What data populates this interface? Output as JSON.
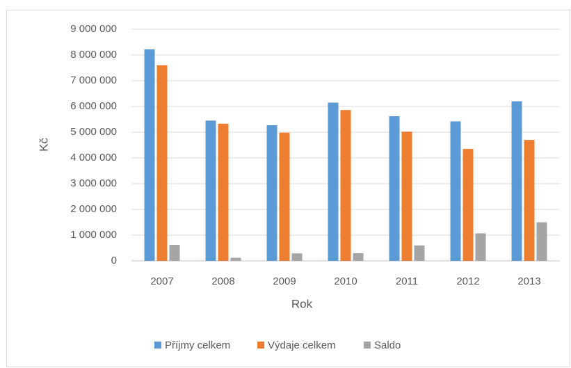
{
  "chart_data": {
    "type": "bar",
    "x_label": "Rok",
    "y_label": "Kč",
    "categories": [
      "2007",
      "2008",
      "2009",
      "2010",
      "2011",
      "2012",
      "2013"
    ],
    "series": [
      {
        "name": "Příjmy celkem",
        "color": "#5b9bd5",
        "values": [
          8220000,
          5450000,
          5270000,
          6150000,
          5620000,
          5420000,
          6200000
        ]
      },
      {
        "name": "Výdaje celkem",
        "color": "#ed7d31",
        "values": [
          7600000,
          5330000,
          4980000,
          5860000,
          5020000,
          4350000,
          4700000
        ]
      },
      {
        "name": "Saldo",
        "color": "#a5a5a5",
        "values": [
          620000,
          120000,
          290000,
          300000,
          600000,
          1070000,
          1500000
        ]
      }
    ],
    "ylim": [
      0,
      9000000
    ],
    "yticks": [
      0,
      {
        "value": 1000000,
        "label": "1 000 000"
      },
      {
        "value": 2000000,
        "label": "2 000 000"
      },
      {
        "value": 3000000,
        "label": "3 000 000"
      },
      {
        "value": 4000000,
        "label": "4 000 000"
      },
      {
        "value": 5000000,
        "label": "5 000 000"
      },
      {
        "value": 6000000,
        "label": "6 000 000"
      },
      {
        "value": 7000000,
        "label": "7 000 000"
      },
      {
        "value": 8000000,
        "label": "8 000 000"
      },
      {
        "value": 9000000,
        "label": "9 000 000"
      }
    ],
    "grid": true,
    "legend": "bottom"
  }
}
